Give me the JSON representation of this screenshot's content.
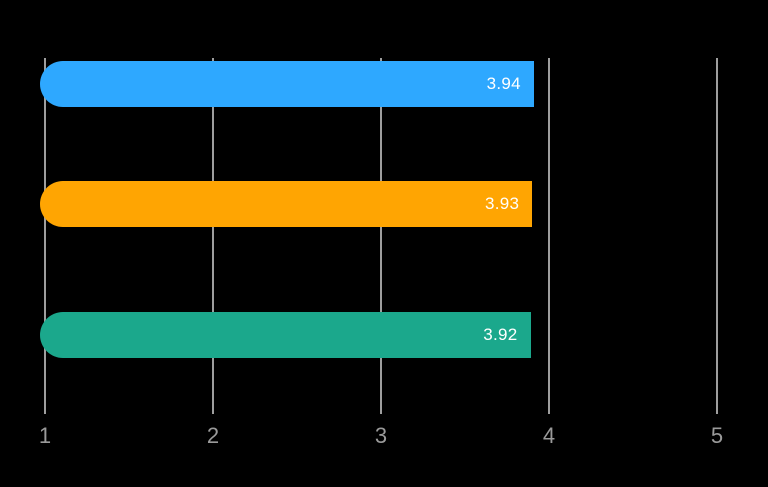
{
  "chart_data": {
    "type": "bar",
    "orientation": "horizontal",
    "title": "",
    "xlabel": "",
    "ylabel": "",
    "xlim": [
      1,
      5
    ],
    "x_ticks": [
      1,
      2,
      3,
      4,
      5
    ],
    "grid": true,
    "legend": false,
    "background_color": "#000000",
    "gridline_color": "#9e9e9e",
    "tick_label_color": "#9a9a9a",
    "value_label_color": "#ffffff",
    "bars": [
      {
        "value": 3.94,
        "label": "3.94",
        "color": "#2ea8ff"
      },
      {
        "value": 3.93,
        "label": "3.93",
        "color": "#ffa502"
      },
      {
        "value": 3.92,
        "label": "3.92",
        "color": "#1ba88c"
      }
    ]
  }
}
